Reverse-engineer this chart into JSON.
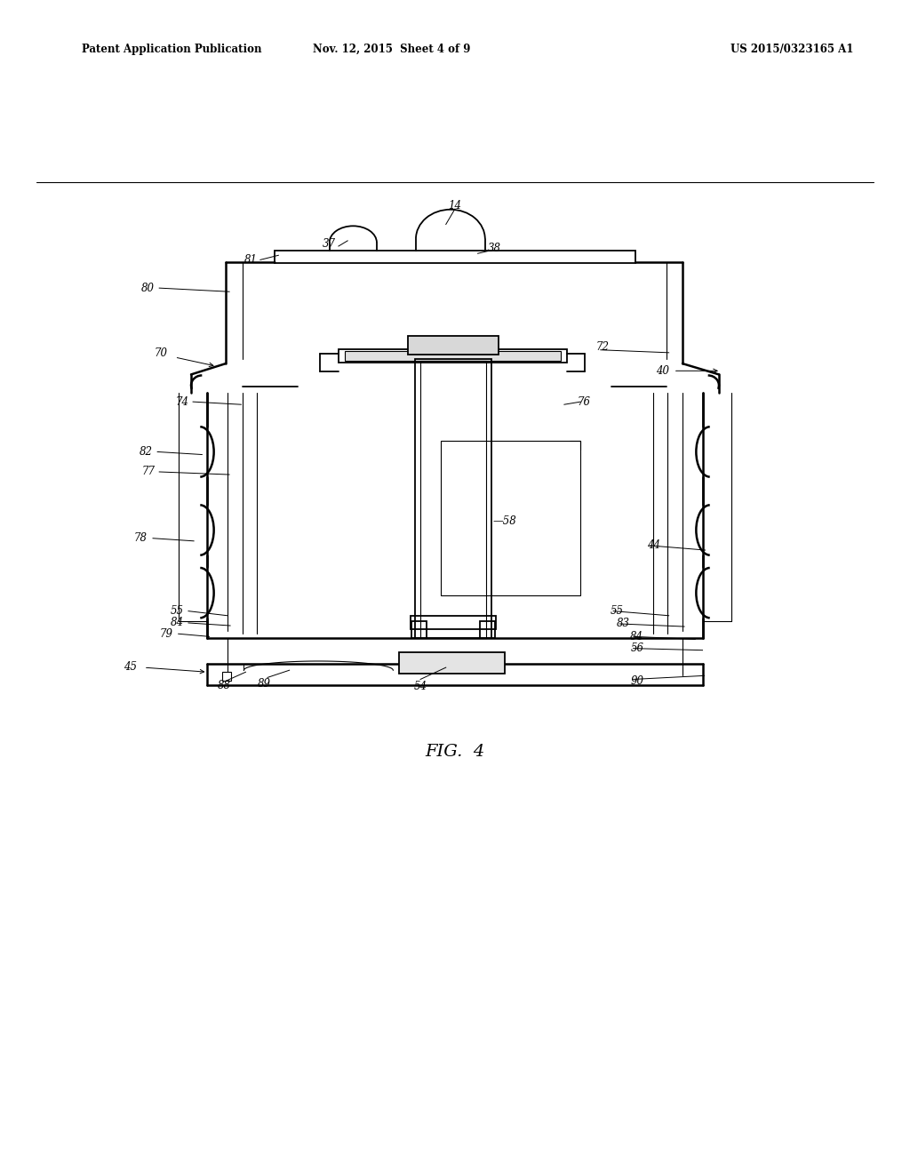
{
  "bg_color": "#ffffff",
  "line_color": "#000000",
  "header_left": "Patent Application Publication",
  "header_mid": "Nov. 12, 2015  Sheet 4 of 9",
  "header_right": "US 2015/0323165 A1",
  "fig_label": "FIG.  4"
}
